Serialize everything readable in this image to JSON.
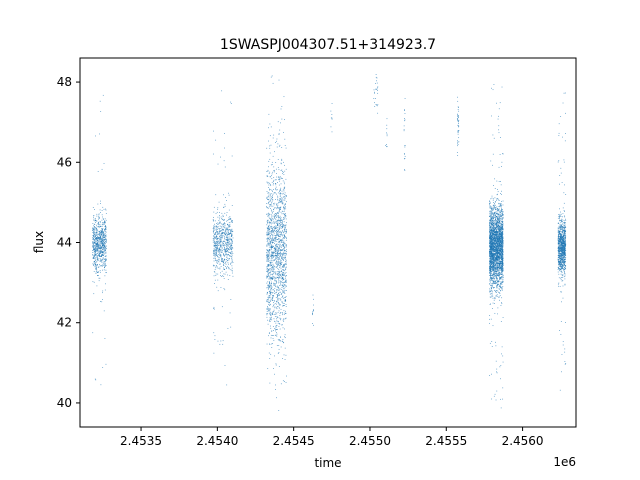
{
  "chart_data": {
    "type": "scatter",
    "title": "1SWASPJ004307.51+314923.7",
    "xlabel": "time",
    "ylabel": "flux",
    "x_offset_label": "1e6",
    "xlim": [
      2.4531,
      2.45635
    ],
    "ylim": [
      39.4,
      48.6
    ],
    "xticks": [
      2.4535,
      2.454,
      2.4545,
      2.455,
      2.4555,
      2.456
    ],
    "xtick_labels": [
      "2.4535",
      "2.4540",
      "2.4545",
      "2.4550",
      "2.4555",
      "2.4560"
    ],
    "yticks": [
      40,
      42,
      44,
      46,
      48
    ],
    "ytick_labels": [
      "40",
      "42",
      "44",
      "46",
      "48"
    ],
    "grid": false,
    "marker_color": "#1f77b4",
    "clusters": [
      {
        "x_start": 2.45318,
        "x_end": 2.45327,
        "y_center": 44.0,
        "y_spread": 0.35,
        "y_min": 40.2,
        "y_max": 47.8,
        "count": 700,
        "outliers": 35
      },
      {
        "x_start": 2.45397,
        "x_end": 2.4541,
        "y_center": 44.0,
        "y_spread": 0.4,
        "y_min": 40.4,
        "y_max": 48.1,
        "count": 650,
        "outliers": 45
      },
      {
        "x_start": 2.45432,
        "x_end": 2.45445,
        "y_center": 43.8,
        "y_spread": 1.1,
        "y_min": 39.8,
        "y_max": 48.2,
        "count": 1500,
        "outliers": 80
      },
      {
        "x_start": 2.45462,
        "x_end": 2.45463,
        "y_center": 42.3,
        "y_spread": 0.2,
        "y_min": 41.6,
        "y_max": 42.7,
        "count": 12,
        "outliers": 0
      },
      {
        "x_start": 2.45474,
        "x_end": 2.45475,
        "y_center": 47.0,
        "y_spread": 0.3,
        "y_min": 46.5,
        "y_max": 47.6,
        "count": 8,
        "outliers": 0
      },
      {
        "x_start": 2.45502,
        "x_end": 2.45505,
        "y_center": 47.7,
        "y_spread": 0.3,
        "y_min": 47.2,
        "y_max": 48.2,
        "count": 25,
        "outliers": 0
      },
      {
        "x_start": 2.4551,
        "x_end": 2.45511,
        "y_center": 46.8,
        "y_spread": 0.2,
        "y_min": 46.4,
        "y_max": 47.3,
        "count": 10,
        "outliers": 0
      },
      {
        "x_start": 2.45522,
        "x_end": 2.45523,
        "y_center": 46.5,
        "y_spread": 0.6,
        "y_min": 45.2,
        "y_max": 47.6,
        "count": 20,
        "outliers": 0
      },
      {
        "x_start": 2.45557,
        "x_end": 2.45558,
        "y_center": 47.0,
        "y_spread": 0.4,
        "y_min": 46.0,
        "y_max": 48.0,
        "count": 40,
        "outliers": 0
      },
      {
        "x_start": 2.45578,
        "x_end": 2.45587,
        "y_center": 43.9,
        "y_spread": 0.5,
        "y_min": 39.8,
        "y_max": 48.1,
        "count": 2600,
        "outliers": 90
      },
      {
        "x_start": 2.45623,
        "x_end": 2.45628,
        "y_center": 43.9,
        "y_spread": 0.35,
        "y_min": 40.2,
        "y_max": 48.0,
        "count": 900,
        "outliers": 50
      }
    ]
  }
}
